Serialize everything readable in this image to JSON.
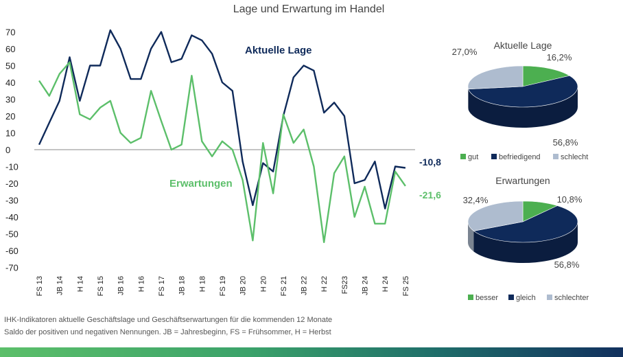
{
  "colors": {
    "lage": "#0f2a5a",
    "erwartungen": "#5cbf6a",
    "gut": "#4caf50",
    "befriedigend": "#0f2a5a",
    "schlecht": "#aebccf",
    "axis_text": "#222222"
  },
  "chart_data": [
    {
      "type": "line",
      "title": "Lage und Erwartung im Handel",
      "x": [
        "FS 13",
        "",
        "JB 14",
        "",
        "H 14",
        "",
        "FS 15",
        "",
        "JB 16",
        "",
        "H 16",
        "",
        "FS 17",
        "",
        "JB 18",
        "",
        "H 18",
        "",
        "FS 19",
        "",
        "JB 20",
        "",
        "H 20",
        "",
        "FS 21",
        "",
        "JB 22",
        "",
        "H 22",
        "",
        "FS23",
        "",
        "JB 24",
        "",
        "H 24",
        "",
        "FS 25"
      ],
      "x_tick_labels": [
        "FS 13",
        "JB 14",
        "H 14",
        "FS 15",
        "JB 16",
        "H 16",
        "FS 17",
        "JB 18",
        "H 18",
        "FS 19",
        "JB 20",
        "H 20",
        "FS 21",
        "JB 22",
        "H 22",
        "FS23",
        "JB 24",
        "H 24",
        "FS 25"
      ],
      "ylim": [
        -70,
        70
      ],
      "yticks": [
        70,
        60,
        50,
        40,
        30,
        20,
        10,
        0,
        -10,
        -20,
        -30,
        -40,
        -50,
        -60,
        -70
      ],
      "series": [
        {
          "name": "Aktuelle Lage",
          "values": [
            3,
            16,
            29,
            55,
            29,
            50,
            50,
            71,
            60,
            42,
            42,
            60,
            70,
            52,
            54,
            68,
            65,
            57,
            40,
            35,
            -7,
            -33,
            -8,
            -13,
            20,
            43,
            50,
            47,
            22,
            28,
            20,
            -20,
            -18,
            -7,
            -35,
            -10,
            -10.8
          ],
          "end_label": "-10,8"
        },
        {
          "name": "Erwartungen",
          "values": [
            41,
            32,
            45,
            52,
            21,
            18,
            25,
            29,
            10,
            4,
            7,
            35,
            17,
            0,
            3,
            44,
            5,
            -4,
            5,
            0,
            -18,
            -54,
            4,
            -26,
            21,
            4,
            12,
            -10,
            -55,
            -14,
            -4,
            -40,
            -22,
            -44,
            -44,
            -13,
            -21.6
          ],
          "end_label": "-21,6"
        }
      ]
    },
    {
      "type": "pie",
      "title": "Aktuelle Lage",
      "labels": [
        "gut",
        "befriedigend",
        "schlecht"
      ],
      "values": [
        16.2,
        56.8,
        27.0
      ],
      "value_labels": [
        "16,2%",
        "56,8%",
        "27,0%"
      ]
    },
    {
      "type": "pie",
      "title": "Erwartungen",
      "labels": [
        "besser",
        "gleich",
        "schlechter"
      ],
      "values": [
        10.8,
        56.8,
        32.4
      ],
      "value_labels": [
        "10,8%",
        "56,8%",
        "32,4%"
      ]
    }
  ],
  "footer": {
    "line1": "IHK-Indikatoren aktuelle Geschäftslage und Geschäftserwartungen für die kommenden 12 Monate",
    "line2": "Saldo der positiven und negativen Nennungen. JB = Jahresbeginn, FS = Frühsommer, H = Herbst"
  }
}
